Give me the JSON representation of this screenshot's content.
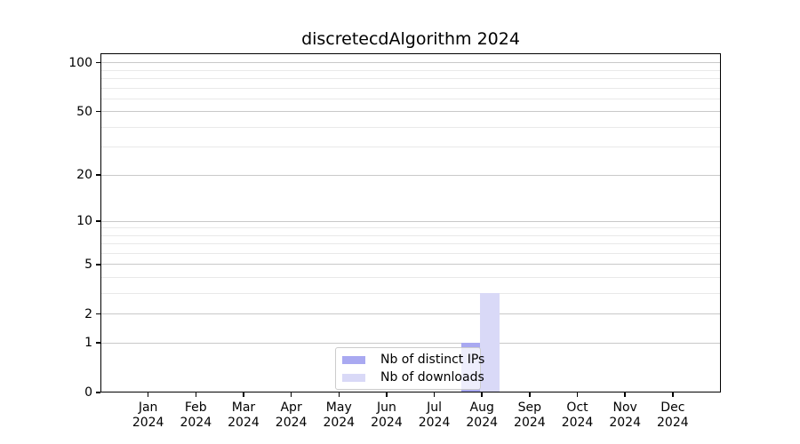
{
  "chart_data": {
    "type": "bar",
    "title": "discretecdAlgorithm 2024",
    "categories": [
      "Jan 2024",
      "Feb 2024",
      "Mar 2024",
      "Apr 2024",
      "May 2024",
      "Jun 2024",
      "Jul 2024",
      "Aug 2024",
      "Sep 2024",
      "Oct 2024",
      "Nov 2024",
      "Dec 2024"
    ],
    "series": [
      {
        "name": "Nb of distinct IPs",
        "color": "#a9a9f1",
        "values": [
          0,
          0,
          0,
          0,
          0,
          0,
          0,
          1,
          0,
          0,
          0,
          0
        ]
      },
      {
        "name": "Nb of downloads",
        "color": "#d9d9f7",
        "values": [
          0,
          0,
          0,
          0,
          0,
          0,
          0,
          3,
          0,
          0,
          0,
          0
        ]
      }
    ],
    "yscale": "log10(value+1)",
    "ylim": [
      0,
      115
    ],
    "yticks": [
      0,
      1,
      2,
      5,
      10,
      20,
      50,
      100
    ],
    "yticks_minor": [
      3,
      4,
      6,
      7,
      8,
      9,
      30,
      40,
      60,
      70,
      80,
      90
    ],
    "grid": "on",
    "legend_position": "lower center"
  },
  "colors": {
    "bar_distinct_ips": "#a9a9f1",
    "bar_downloads": "#d9d9f7",
    "major_grid": "#c9c9c9",
    "minor_grid": "#e9e9e9",
    "axis": "#000000",
    "background": "#ffffff",
    "legend_border": "#cccccc"
  }
}
